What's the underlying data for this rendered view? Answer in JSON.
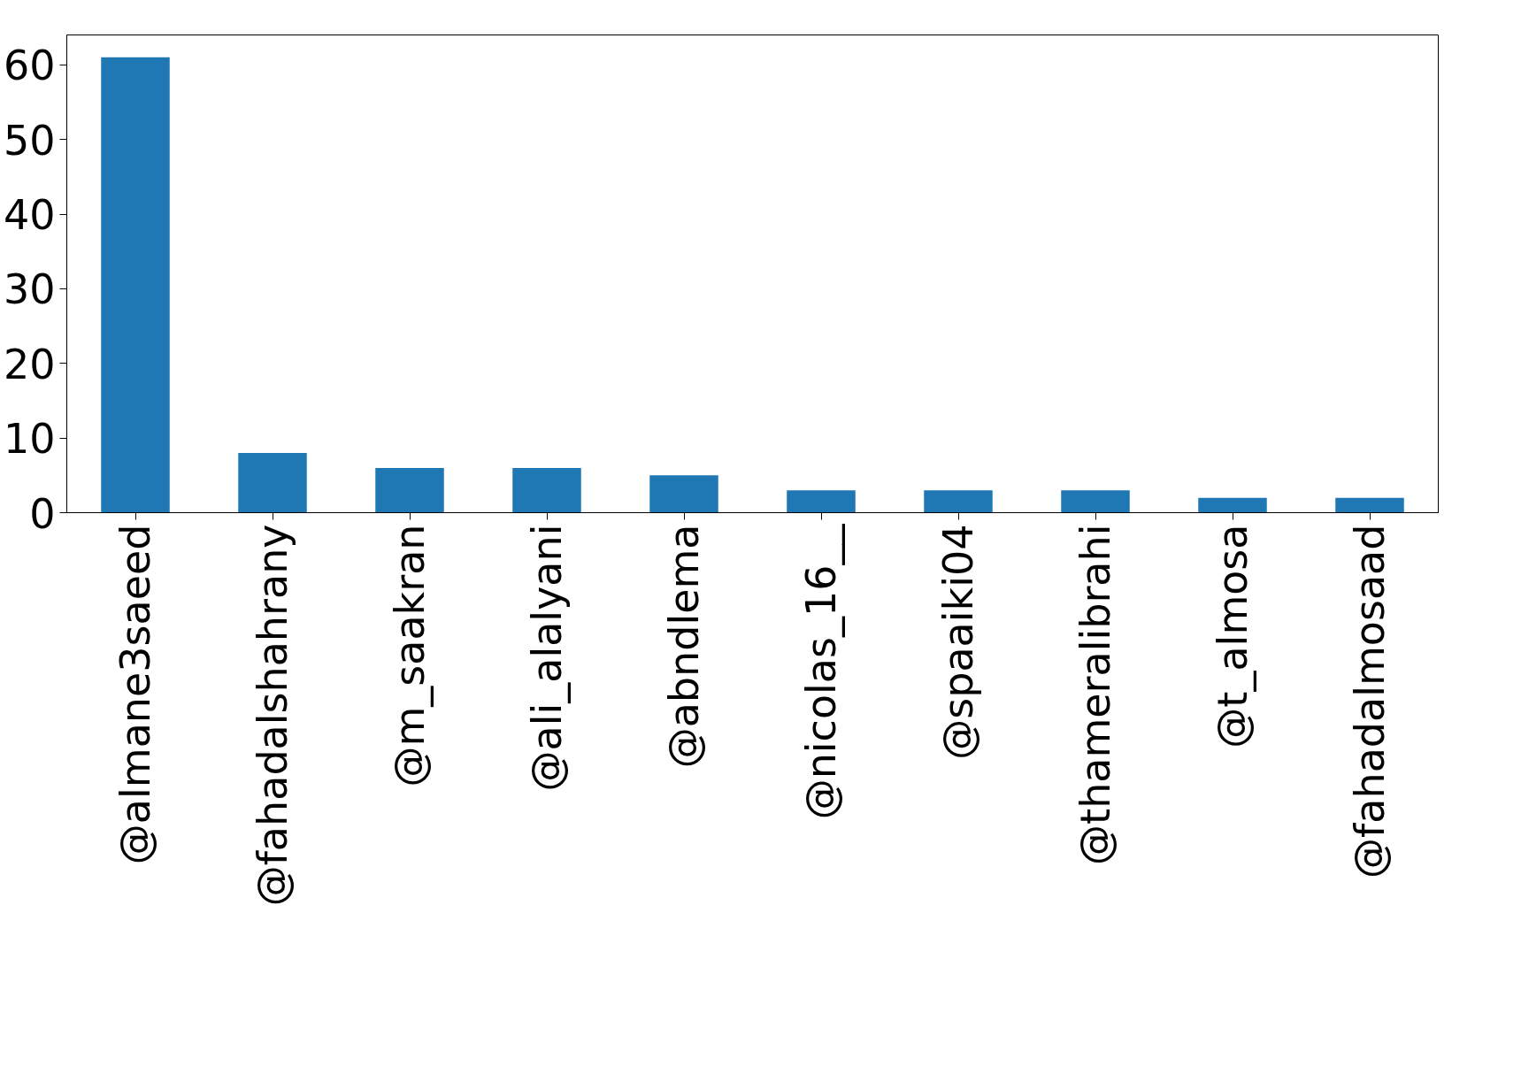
{
  "chart_data": {
    "type": "bar",
    "categories": [
      "@almane3saeed",
      "@fahadalshahrany",
      "@m_saakran",
      "@ali_alalyani",
      "@abndlema",
      "@nicolas_16__",
      "@spaaiki04",
      "@thameralibrahi",
      "@t_almosa",
      "@fahadalmosaad"
    ],
    "values": [
      61,
      8,
      6,
      6,
      5,
      3,
      3,
      3,
      2,
      2
    ],
    "color": "#1f77b4",
    "ylim": [
      0,
      64
    ],
    "yticks": [
      0,
      10,
      20,
      30,
      40,
      50,
      60
    ]
  }
}
